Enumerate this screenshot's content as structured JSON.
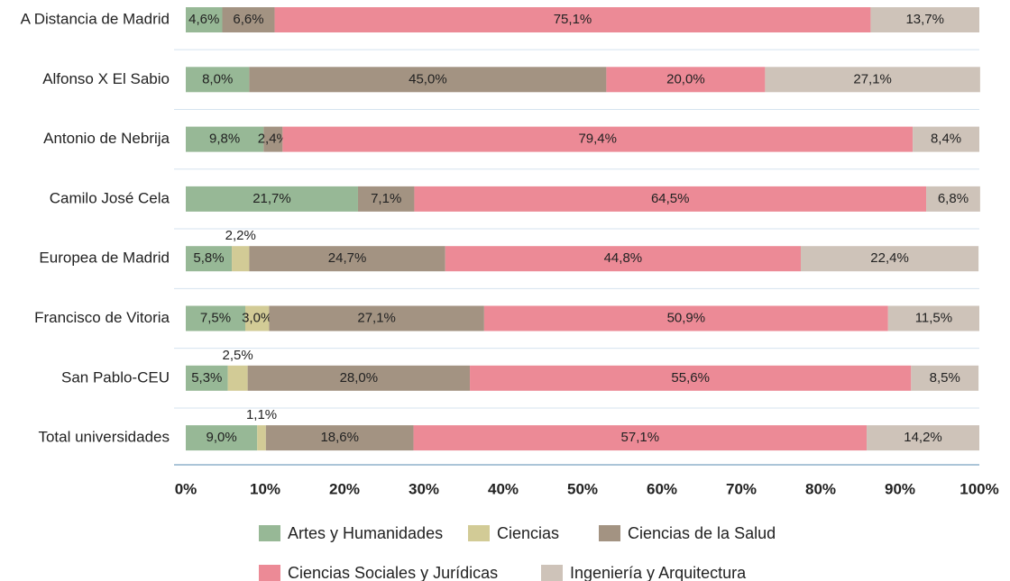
{
  "chart_data": {
    "type": "stacked-bar-horizontal",
    "categories": [
      "A Distancia de Madrid",
      "Alfonso X El Sabio",
      "Antonio de Nebrija",
      "Camilo José Cela",
      "Europea de Madrid",
      "Francisco de Vitoria",
      "San Pablo-CEU",
      "Total universidades"
    ],
    "series": [
      {
        "name": "Artes y Humanidades",
        "color": "#97b896",
        "values": [
          4.6,
          8.0,
          9.8,
          21.7,
          5.8,
          7.5,
          5.3,
          9.0
        ],
        "value_labels": [
          "4,6%",
          "8,0%",
          "9,8%",
          "21,7%",
          "5,8%",
          "7,5%",
          "5,3%",
          "9,0%"
        ]
      },
      {
        "name": "Ciencias",
        "color": "#d2cb96",
        "values": [
          null,
          null,
          null,
          null,
          2.2,
          3.0,
          2.5,
          1.1
        ],
        "value_labels": [
          null,
          null,
          null,
          null,
          "2,2%",
          "3,0%",
          "2,5%",
          "1,1%"
        ]
      },
      {
        "name": "Ciencias de la Salud",
        "color": "#a39382",
        "values": [
          6.6,
          45.0,
          2.4,
          7.1,
          24.7,
          27.1,
          28.0,
          18.6
        ],
        "value_labels": [
          "6,6%",
          "45,0%",
          "2,4%",
          "7,1%",
          "24,7%",
          "27,1%",
          "28,0%",
          "18,6%"
        ]
      },
      {
        "name": "Ciencias Sociales y Jurídicas",
        "color": "#ec8a96",
        "values": [
          75.1,
          20.0,
          79.4,
          64.5,
          44.8,
          50.9,
          55.6,
          57.1
        ],
        "value_labels": [
          "75,1%",
          "20,0%",
          "79,4%",
          "64,5%",
          "44,8%",
          "50,9%",
          "55,6%",
          "57,1%"
        ]
      },
      {
        "name": "Ingeniería y Arquitectura",
        "color": "#cec3b9",
        "values": [
          13.7,
          27.1,
          8.4,
          6.8,
          22.4,
          11.5,
          8.5,
          14.2
        ],
        "value_labels": [
          "13,7%",
          "27,1%",
          "8,4%",
          "6,8%",
          "22,4%",
          "11,5%",
          "8,5%",
          "14,2%"
        ]
      }
    ],
    "xlim": [
      0,
      100
    ],
    "xticks": [
      {
        "value": 0,
        "label": "0%"
      },
      {
        "value": 10,
        "label": "10%"
      },
      {
        "value": 20,
        "label": "20%"
      },
      {
        "value": 30,
        "label": "30%"
      },
      {
        "value": 40,
        "label": "40%"
      },
      {
        "value": 50,
        "label": "50%"
      },
      {
        "value": 60,
        "label": "60%"
      },
      {
        "value": 70,
        "label": "70%"
      },
      {
        "value": 80,
        "label": "80%"
      },
      {
        "value": 90,
        "label": "90%"
      },
      {
        "value": 100,
        "label": "100%"
      }
    ]
  }
}
